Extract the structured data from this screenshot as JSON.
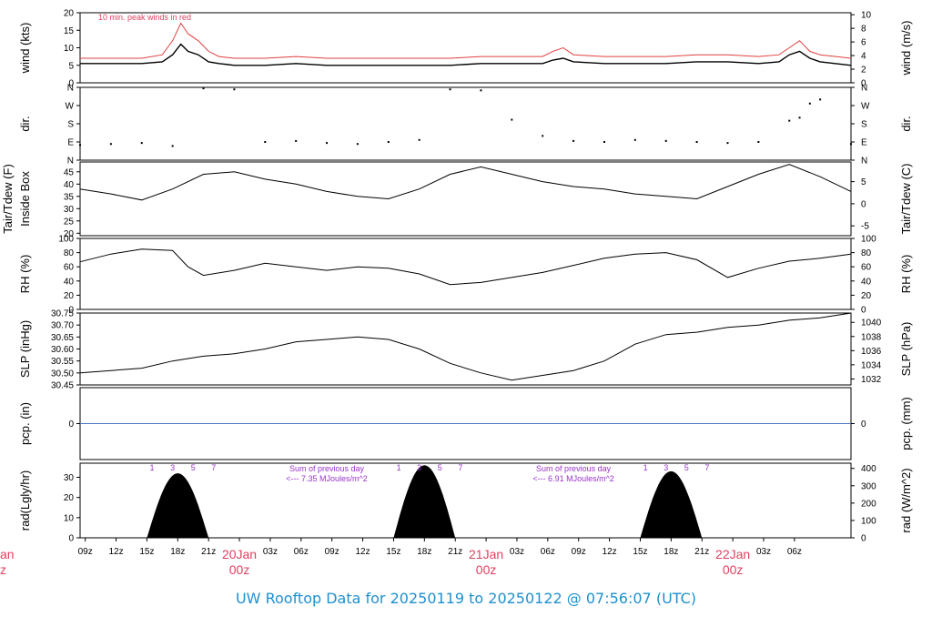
{
  "chart_data": [
    {
      "type": "line",
      "panel": "wind",
      "ylabel_left": "wind (kts)",
      "ylabel_right": "wind (m/s)",
      "left_ticks": [
        0,
        5,
        10,
        15,
        20
      ],
      "right_ticks": [
        0,
        2,
        4,
        6,
        8,
        10
      ],
      "ylim": [
        0,
        20
      ],
      "annotation": "10 min. peak winds in red",
      "series": [
        {
          "role": "mean",
          "color": "#000000",
          "x": [
            0,
            6,
            8,
            9,
            9.8,
            10.5,
            11.5,
            12.5,
            13.5,
            15,
            18,
            21,
            24,
            27,
            30,
            33,
            36,
            39,
            42,
            45,
            46,
            47,
            48,
            51,
            54,
            57,
            60,
            63,
            66,
            68,
            69,
            70,
            71,
            72,
            75
          ],
          "y": [
            5.5,
            5.5,
            6,
            8,
            11,
            9,
            8,
            6,
            5.5,
            5,
            5,
            5.5,
            5,
            5,
            5,
            5,
            5,
            5.5,
            5.5,
            5.5,
            6.5,
            7,
            6,
            5.5,
            5.5,
            5.5,
            6,
            6,
            5.5,
            6,
            8,
            9,
            7,
            6,
            5
          ]
        },
        {
          "role": "peak",
          "color": "#e04040",
          "x": [
            0,
            6,
            8,
            9,
            9.8,
            10.5,
            11.5,
            12.5,
            13.5,
            15,
            18,
            21,
            24,
            27,
            30,
            33,
            36,
            39,
            42,
            45,
            46,
            47,
            48,
            51,
            54,
            57,
            60,
            63,
            66,
            68,
            69,
            70,
            71,
            72,
            75
          ],
          "y": [
            7,
            7,
            8,
            12,
            17,
            14,
            12,
            9,
            7.5,
            7,
            7,
            7.5,
            7,
            7,
            7,
            7,
            7,
            7.5,
            7.5,
            7.5,
            9,
            10,
            8,
            7.5,
            7.5,
            7.5,
            8,
            8,
            7.5,
            8,
            10,
            12,
            9,
            8,
            7
          ]
        }
      ]
    },
    {
      "type": "scatter",
      "panel": "direction",
      "ylabel_left": "dir.",
      "ylabel_right": "dir.",
      "tick_labels": [
        "N",
        "E",
        "S",
        "W",
        "N"
      ],
      "ylim": [
        0,
        360
      ],
      "series": [
        {
          "color": "#000000",
          "x": [
            0,
            3,
            6,
            9,
            12,
            15,
            18,
            21,
            24,
            27,
            30,
            33,
            36,
            39,
            42,
            45,
            48,
            51,
            54,
            57,
            60,
            63,
            66,
            69,
            70,
            71,
            72,
            75
          ],
          "y": [
            75,
            80,
            85,
            70,
            355,
            350,
            90,
            95,
            85,
            80,
            90,
            100,
            350,
            345,
            200,
            120,
            95,
            90,
            100,
            95,
            90,
            85,
            90,
            195,
            210,
            280,
            300,
            80
          ]
        }
      ]
    },
    {
      "type": "line",
      "panel": "temperature",
      "ylabel_left": "Tair/Tdew (F)",
      "ylabel_left_2": "Inside Box",
      "ylabel_right": "Tair/Tdew (C)",
      "left_ticks": [
        20,
        25,
        30,
        35,
        40,
        45
      ],
      "right_ticks": [
        -5,
        0,
        5
      ],
      "ylim": [
        19,
        49
      ],
      "series": [
        {
          "color": "#000000",
          "x": [
            0,
            3,
            6,
            9,
            12,
            15,
            18,
            21,
            24,
            27,
            30,
            33,
            36,
            39,
            42,
            45,
            48,
            51,
            54,
            57,
            60,
            63,
            66,
            69,
            72,
            75
          ],
          "y": [
            38,
            36,
            33.5,
            38,
            44,
            45,
            42,
            40,
            37,
            35,
            34,
            38,
            44,
            47,
            44,
            41,
            39,
            38,
            36,
            35,
            34,
            39,
            44,
            48,
            43,
            37
          ]
        }
      ]
    },
    {
      "type": "line",
      "panel": "humidity",
      "ylabel_left": "RH (%)",
      "ylabel_right": "RH (%)",
      "left_ticks": [
        0,
        20,
        40,
        60,
        80,
        100
      ],
      "right_ticks": [
        0,
        20,
        40,
        60,
        80,
        100
      ],
      "ylim": [
        0,
        100
      ],
      "series": [
        {
          "color": "#000000",
          "x": [
            0,
            3,
            6,
            9,
            10.5,
            12,
            15,
            18,
            21,
            24,
            27,
            30,
            33,
            36,
            39,
            42,
            45,
            48,
            51,
            54,
            57,
            60,
            63,
            66,
            69,
            72,
            75
          ],
          "y": [
            67,
            78,
            85,
            83,
            60,
            48,
            55,
            65,
            60,
            55,
            60,
            58,
            50,
            35,
            38,
            45,
            52,
            62,
            72,
            78,
            80,
            70,
            45,
            58,
            68,
            72,
            78
          ]
        }
      ]
    },
    {
      "type": "line",
      "panel": "pressure",
      "ylabel_left": "SLP (inHg)",
      "ylabel_right": "SLP (hPa)",
      "left_ticks": [
        30.45,
        30.5,
        30.55,
        30.6,
        30.65,
        30.7,
        30.75
      ],
      "right_ticks": [
        1032,
        1034,
        1036,
        1038,
        1040
      ],
      "ylim": [
        30.45,
        30.75
      ],
      "series": [
        {
          "color": "#000000",
          "x": [
            0,
            3,
            6,
            9,
            12,
            15,
            18,
            21,
            24,
            27,
            30,
            33,
            36,
            39,
            42,
            45,
            48,
            51,
            54,
            57,
            60,
            63,
            66,
            69,
            72,
            75
          ],
          "y": [
            30.5,
            30.51,
            30.52,
            30.55,
            30.57,
            30.58,
            30.6,
            30.63,
            30.64,
            30.65,
            30.64,
            30.6,
            30.54,
            30.5,
            30.47,
            30.49,
            30.51,
            30.55,
            30.62,
            30.66,
            30.67,
            30.69,
            30.7,
            30.72,
            30.73,
            30.75
          ]
        }
      ]
    },
    {
      "type": "line",
      "panel": "precipitation",
      "ylabel_left": "pcp. (in)",
      "ylabel_right": "pcp. (mm)",
      "left_ticks": [
        0
      ],
      "right_ticks": [
        0
      ],
      "ylim": [
        -1,
        1
      ],
      "series": [
        {
          "color": "#4a76c4",
          "x": [
            0,
            75
          ],
          "y": [
            0,
            0
          ]
        }
      ]
    },
    {
      "type": "area",
      "panel": "radiation",
      "ylabel_left": "rad(Lgly/hr)",
      "ylabel_right": "rad (W/m^2)",
      "left_ticks": [
        0,
        10,
        20,
        30
      ],
      "right_ticks": [
        0,
        100,
        200,
        300,
        400
      ],
      "ylim": [
        0,
        37
      ],
      "day_hour_labels": [
        "1",
        "3",
        "5",
        "7"
      ],
      "annotations": [
        {
          "text": "Sum of previous day",
          "subtext": "<--- 7.35 MJoules/m^2"
        },
        {
          "text": "Sum of previous day",
          "subtext": "<--- 6.91 MJoules/m^2"
        }
      ],
      "series": [
        {
          "color": "#000000",
          "x": [
            6.5,
            9.5,
            12.5,
            30.5,
            33.5,
            36.5,
            54.5,
            57.5,
            60.5
          ],
          "y": [
            0,
            32,
            0,
            0,
            36,
            0,
            0,
            33,
            0
          ]
        }
      ]
    }
  ],
  "x_axis": {
    "tick_labels": [
      "09z",
      "12z",
      "15z",
      "18z",
      "21z",
      "20Jan",
      "03z",
      "06z",
      "09z",
      "12z",
      "15z",
      "18z",
      "21z",
      "21Jan",
      "03z",
      "06z",
      "09z",
      "12z",
      "15z",
      "18z",
      "21z",
      "22Jan",
      "03z",
      "06z"
    ],
    "day_sublabel": "00z",
    "left_cut_day": "an",
    "left_cut_sub": "z"
  },
  "footer": "UW Rooftop Data for 20250119  to  20250122 @ 07:56:07  (UTC)",
  "colors": {
    "date_labels": "#e04060",
    "annotation": "#e04060",
    "purple": "#9933cc",
    "footer": "#1e90d0",
    "precip": "#4a76c4"
  }
}
